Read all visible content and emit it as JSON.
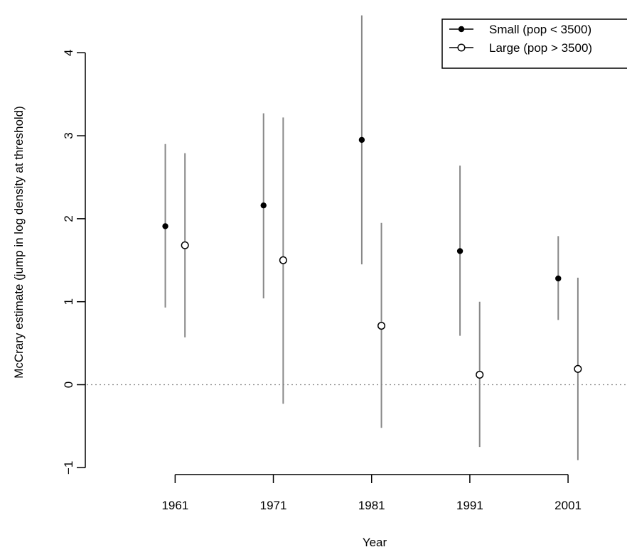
{
  "chart_data": {
    "type": "scatter",
    "title": "",
    "xlabel": "Year",
    "ylabel": "McCrary estimate (jump in log density at threshold)",
    "x_ticks": [
      1961,
      1971,
      1981,
      1991,
      2001
    ],
    "y_ticks": [
      -1,
      0,
      1,
      2,
      3,
      4
    ],
    "xlim": [
      1952,
      2007
    ],
    "ylim": [
      -1.1,
      4.55
    ],
    "reference_line": {
      "y": 0,
      "style": "dotted"
    },
    "legend_placement": "top-right",
    "error_bar_color": "#888888",
    "series": [
      {
        "name": "Small (pop < 3500)",
        "marker": "filled-circle",
        "points": [
          {
            "x": 1960,
            "y": 1.91,
            "lo": 0.93,
            "hi": 2.9
          },
          {
            "x": 1970,
            "y": 2.16,
            "lo": 1.04,
            "hi": 3.27
          },
          {
            "x": 1980,
            "y": 2.95,
            "lo": 1.45,
            "hi": 4.45
          },
          {
            "x": 1990,
            "y": 1.61,
            "lo": 0.59,
            "hi": 2.64
          },
          {
            "x": 2000,
            "y": 1.28,
            "lo": 0.78,
            "hi": 1.79
          }
        ]
      },
      {
        "name": "Large (pop > 3500)",
        "marker": "open-circle",
        "points": [
          {
            "x": 1962,
            "y": 1.68,
            "lo": 0.57,
            "hi": 2.79
          },
          {
            "x": 1972,
            "y": 1.5,
            "lo": -0.23,
            "hi": 3.22
          },
          {
            "x": 1982,
            "y": 0.71,
            "lo": -0.52,
            "hi": 1.95
          },
          {
            "x": 1992,
            "y": 0.12,
            "lo": -0.75,
            "hi": 1.0
          },
          {
            "x": 2002,
            "y": 0.19,
            "lo": -0.91,
            "hi": 1.29
          }
        ]
      }
    ]
  }
}
